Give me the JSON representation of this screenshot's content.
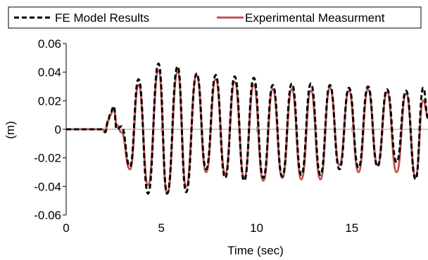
{
  "chart_data": {
    "type": "line",
    "title": "",
    "xlabel": "Time (sec)",
    "ylabel": "(m)",
    "xlim": [
      0,
      19
    ],
    "ylim": [
      -0.06,
      0.06
    ],
    "xticks": [
      0,
      5,
      10,
      15
    ],
    "yticks": [
      -0.06,
      -0.04,
      -0.02,
      0,
      0.02,
      0.04,
      0.06
    ],
    "xtick_labels": [
      "0",
      "5",
      "10",
      "15"
    ],
    "ytick_labels": [
      "-0.06",
      "-0.04",
      "-0.02",
      "0",
      "0.02",
      "0.04",
      "0.06"
    ],
    "grid": false,
    "zero_line": true,
    "legend": {
      "placement": "top",
      "boxed": true
    },
    "series": [
      {
        "name": "FE Model Results",
        "color": "#000000",
        "style": "dashed",
        "x": [
          0,
          1.9,
          2.05,
          2.2,
          2.3,
          2.5,
          2.65,
          2.9,
          3.35,
          3.8,
          4.3,
          4.85,
          5.3,
          5.85,
          6.3,
          6.85,
          7.35,
          7.85,
          8.35,
          8.85,
          9.35,
          9.85,
          10.35,
          10.85,
          11.35,
          11.85,
          12.35,
          12.85,
          13.35,
          13.85,
          14.35,
          14.85,
          15.35,
          15.85,
          16.35,
          16.85,
          17.35,
          17.85,
          18.35,
          18.75,
          19
        ],
        "y": [
          0,
          0,
          -0.002,
          0.005,
          0.01,
          0.016,
          0,
          0.002,
          -0.026,
          0.035,
          -0.045,
          0.046,
          -0.045,
          0.044,
          -0.044,
          0.039,
          -0.028,
          0.038,
          -0.034,
          0.037,
          -0.036,
          0.036,
          -0.034,
          0.031,
          -0.033,
          0.032,
          -0.032,
          0.032,
          -0.032,
          0.031,
          -0.028,
          0.029,
          -0.027,
          0.03,
          -0.026,
          0.028,
          -0.023,
          0.027,
          -0.035,
          0.029,
          0.008
        ]
      },
      {
        "name": "Experimental Measurment",
        "color": "#c0504d",
        "style": "solid",
        "x": [
          0,
          1.9,
          2.05,
          2.2,
          2.3,
          2.5,
          2.65,
          2.9,
          3.35,
          3.8,
          4.3,
          4.85,
          5.3,
          5.85,
          6.3,
          6.85,
          7.35,
          7.85,
          8.35,
          8.85,
          9.35,
          9.85,
          10.35,
          10.85,
          11.35,
          11.85,
          12.35,
          12.85,
          13.35,
          13.85,
          14.35,
          14.85,
          15.35,
          15.85,
          16.35,
          16.85,
          17.35,
          17.85,
          18.35,
          18.75,
          19
        ],
        "y": [
          0,
          0,
          -0.001,
          0.006,
          0.01,
          0.015,
          0.003,
          -0.002,
          -0.028,
          0.031,
          -0.039,
          0.041,
          -0.045,
          0.04,
          -0.04,
          0.038,
          -0.03,
          0.035,
          -0.031,
          0.033,
          -0.034,
          0.031,
          -0.036,
          0.028,
          -0.034,
          0.028,
          -0.035,
          0.027,
          -0.035,
          0.029,
          -0.025,
          0.027,
          -0.03,
          0.028,
          -0.025,
          0.026,
          -0.03,
          0.025,
          -0.033,
          0.02,
          0.01
        ]
      }
    ]
  }
}
